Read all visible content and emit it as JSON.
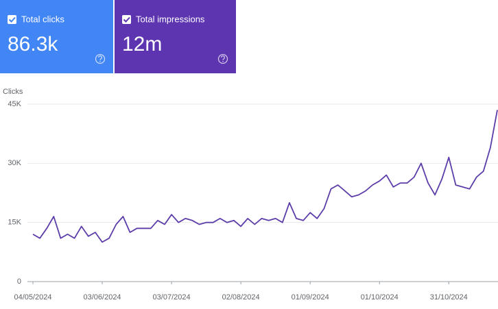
{
  "cards": [
    {
      "label": "Total clicks",
      "value": "86.3k",
      "color": "#4285f4"
    },
    {
      "label": "Total impressions",
      "value": "12m",
      "color": "#5e35b1"
    }
  ],
  "chart_data": {
    "type": "line",
    "y_label": "Clicks",
    "color": "#5b3ca8",
    "grid": true,
    "x": [
      "04/05/2024",
      "07/05/2024",
      "10/05/2024",
      "13/05/2024",
      "16/05/2024",
      "19/05/2024",
      "22/05/2024",
      "25/05/2024",
      "28/05/2024",
      "31/05/2024",
      "03/06/2024",
      "06/06/2024",
      "09/06/2024",
      "12/06/2024",
      "15/06/2024",
      "18/06/2024",
      "21/06/2024",
      "24/06/2024",
      "27/06/2024",
      "30/06/2024",
      "03/07/2024",
      "06/07/2024",
      "09/07/2024",
      "12/07/2024",
      "15/07/2024",
      "18/07/2024",
      "21/07/2024",
      "24/07/2024",
      "27/07/2024",
      "30/07/2024",
      "02/08/2024",
      "05/08/2024",
      "08/08/2024",
      "11/08/2024",
      "14/08/2024",
      "17/08/2024",
      "20/08/2024",
      "23/08/2024",
      "26/08/2024",
      "29/08/2024",
      "01/09/2024",
      "04/09/2024",
      "07/09/2024",
      "10/09/2024",
      "13/09/2024",
      "16/09/2024",
      "19/09/2024",
      "22/09/2024",
      "25/09/2024",
      "28/09/2024",
      "01/10/2024",
      "04/10/2024",
      "07/10/2024",
      "10/10/2024",
      "13/10/2024",
      "16/10/2024",
      "19/10/2024",
      "22/10/2024",
      "25/10/2024",
      "28/10/2024",
      "31/10/2024",
      "03/11/2024",
      "06/11/2024",
      "09/11/2024",
      "12/11/2024",
      "15/11/2024",
      "18/11/2024",
      "21/11/2024"
    ],
    "values": [
      12000,
      11000,
      13500,
      16500,
      11000,
      12000,
      11000,
      14000,
      11500,
      12500,
      10000,
      11000,
      14500,
      16500,
      12500,
      13500,
      13500,
      13500,
      15500,
      14500,
      17000,
      15000,
      16000,
      15500,
      14500,
      15000,
      15000,
      16000,
      15000,
      15500,
      14000,
      16000,
      14500,
      16000,
      15500,
      16000,
      15000,
      20000,
      16000,
      15500,
      17500,
      16000,
      18500,
      23500,
      24500,
      23000,
      21500,
      22000,
      23000,
      24500,
      25500,
      27000,
      24000,
      25000,
      25000,
      26500,
      30000,
      25000,
      22000,
      26000,
      31500,
      24500,
      24000,
      23500,
      26500,
      28000,
      34000,
      43500
    ],
    "xlim": [
      "04/05/2024",
      "21/11/2024"
    ],
    "xticks": [
      "04/05/2024",
      "03/06/2024",
      "03/07/2024",
      "02/08/2024",
      "01/09/2024",
      "01/10/2024",
      "31/10/2024"
    ],
    "ylim": [
      0,
      45000
    ],
    "yticks": [
      {
        "value": 0,
        "label": "0"
      },
      {
        "value": 15000,
        "label": "15K"
      },
      {
        "value": 30000,
        "label": "30K"
      },
      {
        "value": 45000,
        "label": "45K"
      }
    ]
  }
}
